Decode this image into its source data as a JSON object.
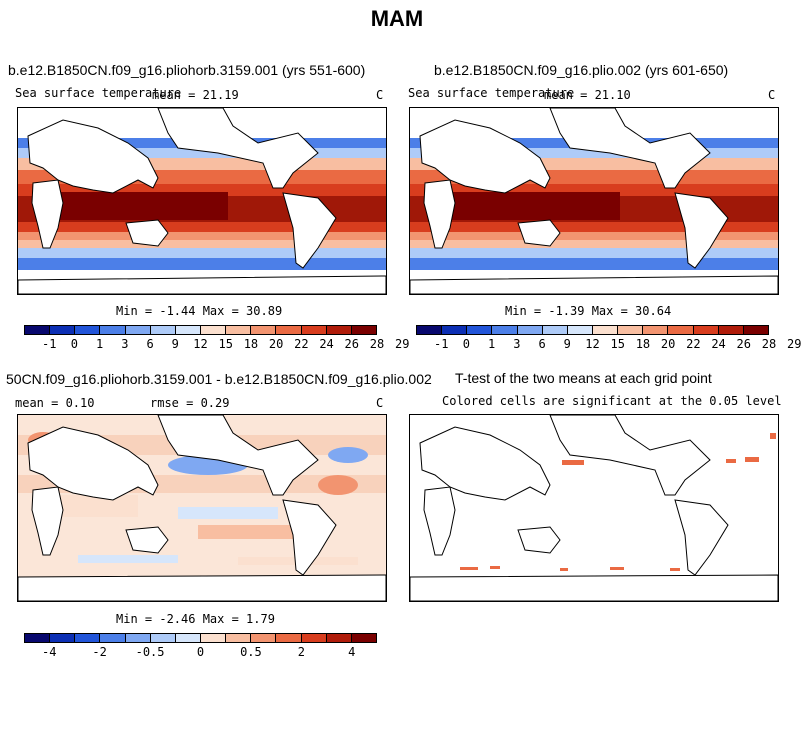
{
  "figure_title": "MAM",
  "panels": [
    {
      "title": "b.e12.B1850CN.f09_g16.pliohorb.3159.001 (yrs 551-600)",
      "variable": "Sea surface temperature",
      "stat_text": "mean =   21.19",
      "units": "C",
      "minmax_text": "Min =   -1.44 Max =   30.89"
    },
    {
      "title": "b.e12.B1850CN.f09_g16.plio.002 (yrs 601-650)",
      "variable": "Sea surface temperature",
      "stat_text": "mean =   21.10",
      "units": "C",
      "minmax_text": "Min =   -1.39 Max =   30.64"
    },
    {
      "title": "50CN.f09_g16.pliohorb.3159.001 - b.e12.B1850CN.f09_g16.plio.002",
      "stat_mean": "mean =    0.10",
      "stat_rmse": "rmse =    0.29",
      "units": "C",
      "minmax_text": "Min =   -2.46 Max =    1.79"
    },
    {
      "title": "T-test of the two means at each grid point",
      "subtitle": "Colored cells are significant at the 0.05 level"
    }
  ],
  "colorbar_colors": [
    "#08086e",
    "#0c2fb4",
    "#2255d9",
    "#4c7fe8",
    "#7fa8f2",
    "#aecbf8",
    "#d6e6fb",
    "#fbe0cf",
    "#f8bea1",
    "#f29470",
    "#ea6a43",
    "#d83d1e",
    "#b01c0a",
    "#7a0000"
  ],
  "chart_data": [
    {
      "type": "heatmap",
      "title": "b.e12.B1850CN.f09_g16.pliohorb.3159.001 (yrs 551-600)",
      "variable": "Sea surface temperature",
      "units": "C",
      "mean": 21.19,
      "min": -1.44,
      "max": 30.89,
      "colorbar_ticks": [
        "-1",
        "0",
        "1",
        "3",
        "6",
        "9",
        "12",
        "15",
        "18",
        "20",
        "22",
        "24",
        "26",
        "28",
        "29"
      ]
    },
    {
      "type": "heatmap",
      "title": "b.e12.B1850CN.f09_g16.plio.002 (yrs 601-650)",
      "variable": "Sea surface temperature",
      "units": "C",
      "mean": 21.1,
      "min": -1.39,
      "max": 30.64,
      "colorbar_ticks": [
        "-1",
        "0",
        "1",
        "3",
        "6",
        "9",
        "12",
        "15",
        "18",
        "20",
        "22",
        "24",
        "26",
        "28",
        "29"
      ]
    },
    {
      "type": "heatmap",
      "title": "50CN.f09_g16.pliohorb.3159.001 - b.e12.B1850CN.f09_g16.plio.002",
      "units": "C",
      "mean": 0.1,
      "rmse": 0.29,
      "min": -2.46,
      "max": 1.79,
      "colorbar_ticks": [
        "-4",
        "-2",
        "-0.5",
        "0",
        "0.5",
        "2",
        "4"
      ]
    },
    {
      "type": "heatmap",
      "title": "T-test of the two means at each grid point",
      "subtitle": "Colored cells are significant at the 0.05 level"
    }
  ]
}
